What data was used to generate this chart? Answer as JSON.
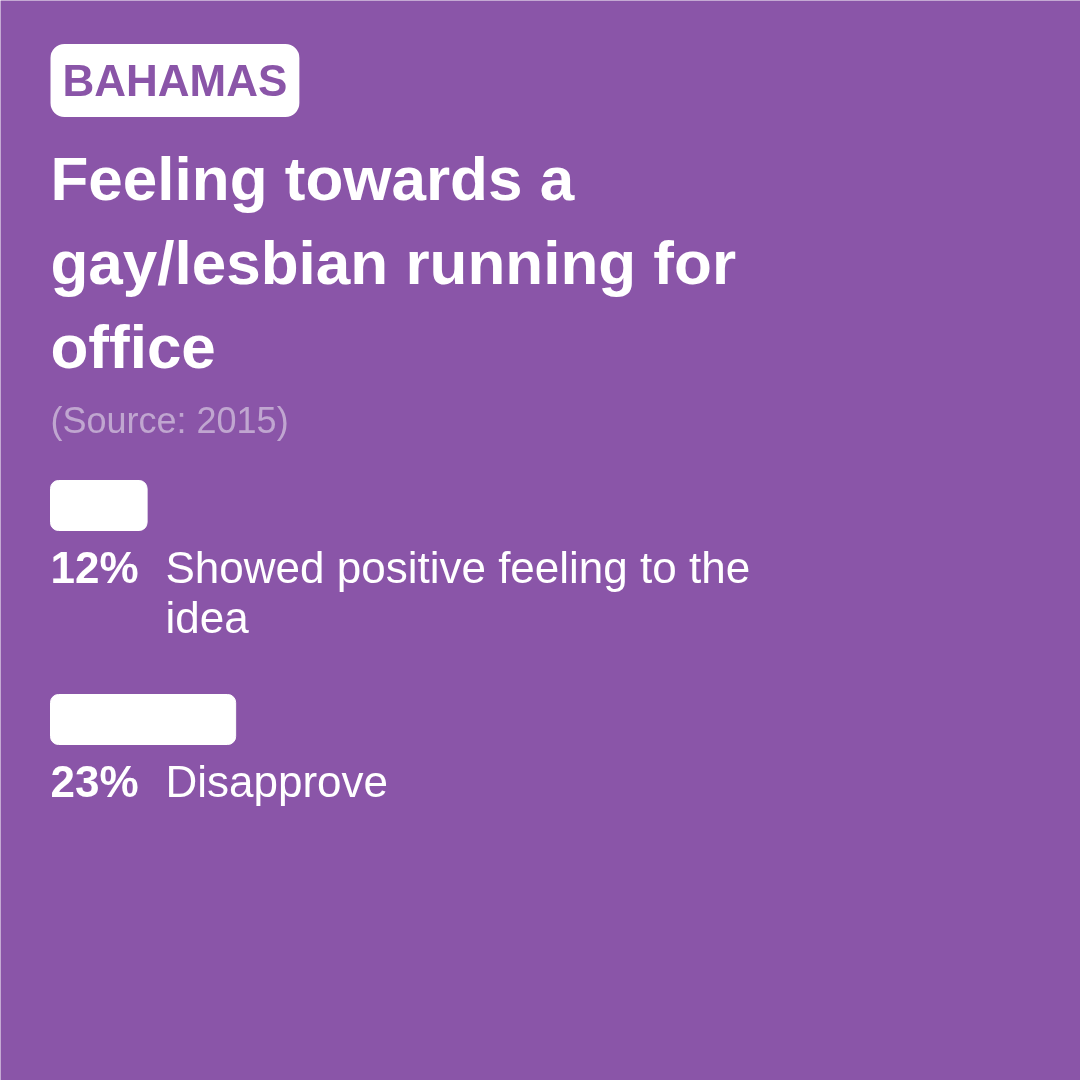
{
  "chart_data": {
    "type": "bar",
    "orientation": "horizontal",
    "title": "Feeling towards a gay/lesbian running for office",
    "annotations": [
      "BAHAMAS",
      "(Source: 2015)"
    ],
    "categories": [
      "Showed positive feeling to the idea",
      "Disapprove"
    ],
    "values": [
      12,
      23
    ],
    "value_labels": [
      "12%",
      "23%"
    ],
    "color": "#ffffff"
  }
}
